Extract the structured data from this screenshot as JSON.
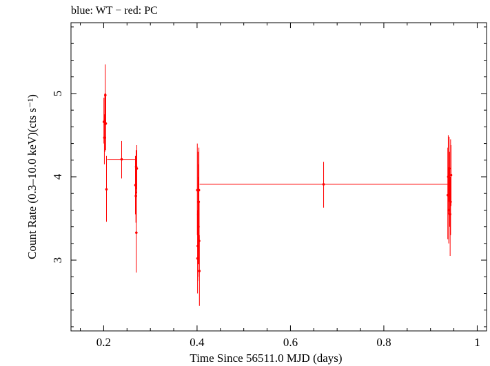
{
  "header": {
    "title": "blue: WT − red: PC"
  },
  "axes": {
    "xlabel": "Time Since 56511.0 MJD (days)",
    "ylabel": "Count Rate (0.3–10.0 keV)(cts s⁻¹)",
    "xticks": [
      "0.2",
      "0.4",
      "0.6",
      "0.8",
      "1"
    ],
    "yticks": [
      "3",
      "4",
      "5"
    ]
  },
  "chart_data": {
    "type": "scatter",
    "title": "blue: WT − red: PC",
    "xlabel": "Time Since 56511.0 MJD (days)",
    "ylabel": "Count Rate (0.3–10.0 keV)(cts s⁻¹)",
    "xlim": [
      0.13,
      1.02
    ],
    "ylim": [
      2.15,
      5.85
    ],
    "xtick_values": [
      0.2,
      0.4,
      0.6,
      0.8,
      1.0
    ],
    "ytick_values": [
      3,
      4,
      5
    ],
    "grid": false,
    "legend": "none",
    "series": [
      {
        "name": "PC",
        "color": "#ff0000",
        "points": [
          {
            "x": 0.2005,
            "y": 4.66,
            "xerr": 0.0005,
            "ylo": 4.4,
            "yhi": 4.95
          },
          {
            "x": 0.2015,
            "y": 4.47,
            "xerr": 0.0005,
            "ylo": 4.15,
            "yhi": 4.75
          },
          {
            "x": 0.2025,
            "y": 4.68,
            "xerr": 0.002,
            "ylo": 4.3,
            "yhi": 5.0
          },
          {
            "x": 0.2035,
            "y": 4.98,
            "xerr": 0.0005,
            "ylo": 4.62,
            "yhi": 5.35
          },
          {
            "x": 0.2045,
            "y": 4.64,
            "xerr": 0.0005,
            "ylo": 4.32,
            "yhi": 5.0
          },
          {
            "x": 0.206,
            "y": 3.85,
            "xerr": 0.0005,
            "ylo": 3.46,
            "yhi": 4.25
          },
          {
            "x": 0.2385,
            "y": 4.21,
            "xerr": 0.031,
            "ylo": 3.98,
            "yhi": 4.43
          },
          {
            "x": 0.268,
            "y": 3.9,
            "xerr": 0.0005,
            "ylo": 3.55,
            "yhi": 4.25
          },
          {
            "x": 0.269,
            "y": 3.77,
            "xerr": 0.0005,
            "ylo": 3.45,
            "yhi": 4.12
          },
          {
            "x": 0.2695,
            "y": 4.12,
            "xerr": 0.0005,
            "ylo": 3.85,
            "yhi": 4.32
          },
          {
            "x": 0.27,
            "y": 3.33,
            "xerr": 0.0005,
            "ylo": 2.85,
            "yhi": 3.82
          },
          {
            "x": 0.271,
            "y": 4.1,
            "xerr": 0.0005,
            "ylo": 3.8,
            "yhi": 4.38
          },
          {
            "x": 0.4005,
            "y": 3.84,
            "xerr": 0.0005,
            "ylo": 3.3,
            "yhi": 4.4
          },
          {
            "x": 0.401,
            "y": 3.02,
            "xerr": 0.0005,
            "ylo": 2.6,
            "yhi": 3.45
          },
          {
            "x": 0.4015,
            "y": 3.17,
            "xerr": 0.0005,
            "ylo": 2.75,
            "yhi": 3.6
          },
          {
            "x": 0.402,
            "y": 3.84,
            "xerr": 0.0005,
            "ylo": 3.45,
            "yhi": 4.3
          },
          {
            "x": 0.4025,
            "y": 3.55,
            "xerr": 0.0005,
            "ylo": 3.1,
            "yhi": 4.0
          },
          {
            "x": 0.403,
            "y": 3.4,
            "xerr": 0.0005,
            "ylo": 2.95,
            "yhi": 3.85
          },
          {
            "x": 0.4035,
            "y": 3.7,
            "xerr": 0.0005,
            "ylo": 3.25,
            "yhi": 4.15
          },
          {
            "x": 0.404,
            "y": 3.84,
            "xerr": 0.0005,
            "ylo": 3.35,
            "yhi": 4.35
          },
          {
            "x": 0.4045,
            "y": 3.23,
            "xerr": 0.0005,
            "ylo": 2.8,
            "yhi": 3.7
          },
          {
            "x": 0.405,
            "y": 2.87,
            "xerr": 0.0005,
            "ylo": 2.45,
            "yhi": 3.3
          },
          {
            "x": 0.671,
            "y": 3.91,
            "xerr": 0.2655,
            "ylo": 3.63,
            "yhi": 4.18
          },
          {
            "x": 0.937,
            "y": 3.78,
            "xerr": 0.0005,
            "ylo": 3.25,
            "yhi": 4.35
          },
          {
            "x": 0.938,
            "y": 4.0,
            "xerr": 0.0005,
            "ylo": 3.55,
            "yhi": 4.5
          },
          {
            "x": 0.939,
            "y": 3.6,
            "xerr": 0.0005,
            "ylo": 3.2,
            "yhi": 4.1
          },
          {
            "x": 0.94,
            "y": 4.1,
            "xerr": 0.0005,
            "ylo": 3.7,
            "yhi": 4.48
          },
          {
            "x": 0.941,
            "y": 3.85,
            "xerr": 0.0005,
            "ylo": 3.4,
            "yhi": 4.3
          },
          {
            "x": 0.942,
            "y": 3.55,
            "xerr": 0.0005,
            "ylo": 3.05,
            "yhi": 4.0
          },
          {
            "x": 0.943,
            "y": 3.7,
            "xerr": 0.0005,
            "ylo": 3.3,
            "yhi": 4.45
          },
          {
            "x": 0.944,
            "y": 4.02,
            "xerr": 0.0005,
            "ylo": 3.65,
            "yhi": 4.38
          }
        ]
      }
    ]
  }
}
